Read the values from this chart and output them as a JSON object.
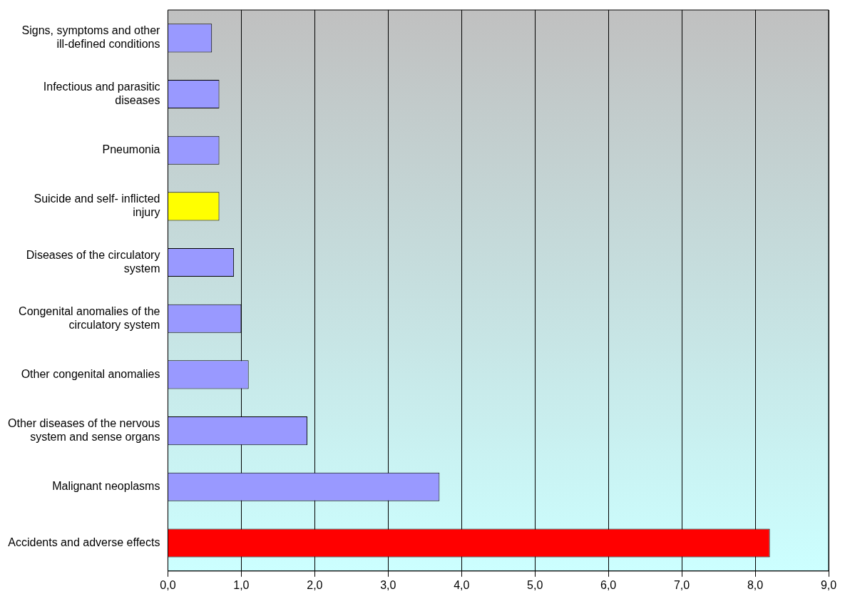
{
  "chart_data": {
    "type": "bar",
    "orientation": "horizontal",
    "categories": [
      "Signs, symptoms and other ill-defined conditions",
      "Infectious and parasitic diseases",
      "Pneumonia",
      "Suicide and self- inflicted injury",
      "Diseases of the circulatory system",
      "Congenital anomalies of the circulatory system",
      "Other congenital anomalies",
      "Other diseases of the nervous system and sense organs",
      "Malignant neoplasms",
      "Accidents and adverse effects"
    ],
    "values": [
      0.6,
      0.7,
      0.7,
      0.7,
      0.9,
      1.0,
      1.1,
      1.9,
      3.7,
      8.2
    ],
    "colors": [
      "#9999ff",
      "#9999ff",
      "#9999ff",
      "#ffff00",
      "#9999ff",
      "#9999ff",
      "#9999ff",
      "#9999ff",
      "#9999ff",
      "#ff0000"
    ],
    "xlim": [
      0,
      9
    ],
    "xticks": [
      {
        "value": 0,
        "label": "0,0"
      },
      {
        "value": 1,
        "label": "1,0"
      },
      {
        "value": 2,
        "label": "2,0"
      },
      {
        "value": 3,
        "label": "3,0"
      },
      {
        "value": 4,
        "label": "4,0"
      },
      {
        "value": 5,
        "label": "5,0"
      },
      {
        "value": 6,
        "label": "6,0"
      },
      {
        "value": 7,
        "label": "7,0"
      },
      {
        "value": 8,
        "label": "8,0"
      },
      {
        "value": 9,
        "label": "9,0"
      }
    ],
    "grid": "x"
  }
}
